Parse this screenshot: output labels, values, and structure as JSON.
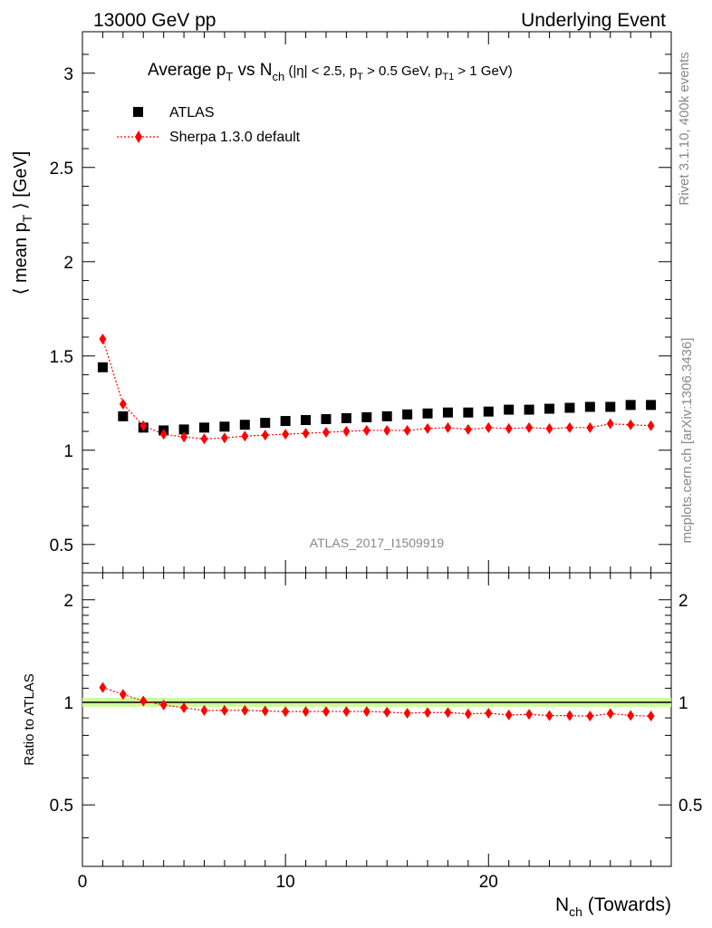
{
  "header": {
    "left": "13000 GeV pp",
    "right": "Underlying Event"
  },
  "plot_title": {
    "prefix": "Average p",
    "prefix_sub": "T",
    "vs": " vs N",
    "vs_sub": "ch",
    "cut1": " (|η| < 2.5, p",
    "cut1_sub": "T",
    "cut2": " > 0.5 GeV, p",
    "cut2_sub": "T1",
    "cut3": " > 1 GeV)"
  },
  "side_labels": {
    "rivet": "Rivet 3.1.10,  400k events",
    "mcplots": "mcplots.cern.ch [arXiv:1306.3436]"
  },
  "watermark": "ATLAS_2017_I1509919",
  "colors": {
    "data": "#000000",
    "mc": "#ff0000",
    "band": "#ccff99",
    "grey_text": "#888888"
  },
  "chart_data": [
    {
      "type": "scatter",
      "title": "Average pT vs Nch (|η| < 2.5, pT > 0.5 GeV, pT1 > 1 GeV)",
      "ylabel_main": "⟨ mean p",
      "ylabel_sub": "T",
      "ylabel_end": " ⟩ [GeV]",
      "ylim": [
        0.35,
        3.22
      ],
      "yticks": [
        0.5,
        1,
        1.5,
        2,
        2.5,
        3
      ],
      "ytick_labels": [
        "0.5",
        "1",
        "1.5",
        "2",
        "2.5",
        "3"
      ],
      "xlim": [
        0,
        29
      ],
      "legend_placement": "top-left",
      "series": [
        {
          "name": "ATLAS",
          "marker": "square",
          "x": [
            1,
            2,
            3,
            4,
            5,
            6,
            7,
            8,
            9,
            10,
            11,
            12,
            13,
            14,
            15,
            16,
            17,
            18,
            19,
            20,
            21,
            22,
            23,
            24,
            25,
            26,
            27,
            28
          ],
          "y": [
            1.44,
            1.18,
            1.12,
            1.105,
            1.11,
            1.12,
            1.125,
            1.135,
            1.145,
            1.155,
            1.16,
            1.165,
            1.17,
            1.175,
            1.18,
            1.19,
            1.195,
            1.2,
            1.2,
            1.205,
            1.215,
            1.215,
            1.22,
            1.225,
            1.23,
            1.23,
            1.24,
            1.24
          ]
        },
        {
          "name": "Sherpa 1.3.0 default",
          "marker": "diamond",
          "line": "dotted",
          "x": [
            1,
            2,
            3,
            4,
            5,
            6,
            7,
            8,
            9,
            10,
            11,
            12,
            13,
            14,
            15,
            16,
            17,
            18,
            19,
            20,
            21,
            22,
            23,
            24,
            25,
            26,
            27,
            28
          ],
          "y": [
            1.59,
            1.245,
            1.13,
            1.085,
            1.07,
            1.06,
            1.065,
            1.075,
            1.08,
            1.085,
            1.09,
            1.095,
            1.1,
            1.105,
            1.105,
            1.105,
            1.115,
            1.12,
            1.11,
            1.12,
            1.115,
            1.12,
            1.115,
            1.12,
            1.12,
            1.14,
            1.135,
            1.13
          ]
        }
      ]
    },
    {
      "type": "scatter",
      "ylabel": "Ratio to ATLAS",
      "xlabel_main": "N",
      "xlabel_sub": "ch",
      "xlabel_end": " (Towards)",
      "xlim": [
        0,
        29
      ],
      "xticks": [
        0,
        10,
        20
      ],
      "xtick_labels": [
        "0",
        "10",
        "20"
      ],
      "ylim": [
        0.33,
        2.4
      ],
      "yticks": [
        0.5,
        1,
        2
      ],
      "ytick_labels": [
        "0.5",
        "1",
        "2"
      ],
      "reference_line": 1.0,
      "series": [
        {
          "name": "Sherpa 1.3.0 default",
          "x": [
            1,
            2,
            3,
            4,
            5,
            6,
            7,
            8,
            9,
            10,
            11,
            12,
            13,
            14,
            15,
            16,
            17,
            18,
            19,
            20,
            21,
            22,
            23,
            24,
            25,
            26,
            27,
            28
          ],
          "y": [
            1.105,
            1.055,
            1.009,
            0.982,
            0.964,
            0.946,
            0.947,
            0.947,
            0.943,
            0.939,
            0.94,
            0.94,
            0.94,
            0.94,
            0.936,
            0.929,
            0.933,
            0.933,
            0.925,
            0.929,
            0.918,
            0.922,
            0.914,
            0.914,
            0.911,
            0.927,
            0.915,
            0.911
          ]
        }
      ]
    }
  ]
}
